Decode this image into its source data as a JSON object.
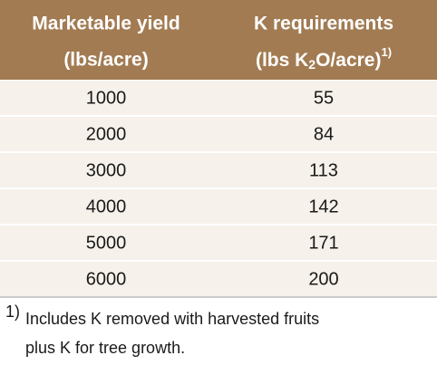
{
  "header": [
    [
      "Marketable yield",
      "(lbs/acre)"
    ],
    [
      "K requirements",
      [
        "(lbs K",
        "2",
        "O/acre)",
        "1)"
      ]
    ]
  ],
  "rows": [
    [
      1000,
      55
    ],
    [
      2000,
      84
    ],
    [
      3000,
      113
    ],
    [
      4000,
      142
    ],
    [
      5000,
      171
    ],
    [
      6000,
      200
    ]
  ],
  "footnote": {
    "marker": "1)",
    "lines": [
      "Includes K removed with harvested fruits",
      "plus K for tree growth."
    ]
  }
}
